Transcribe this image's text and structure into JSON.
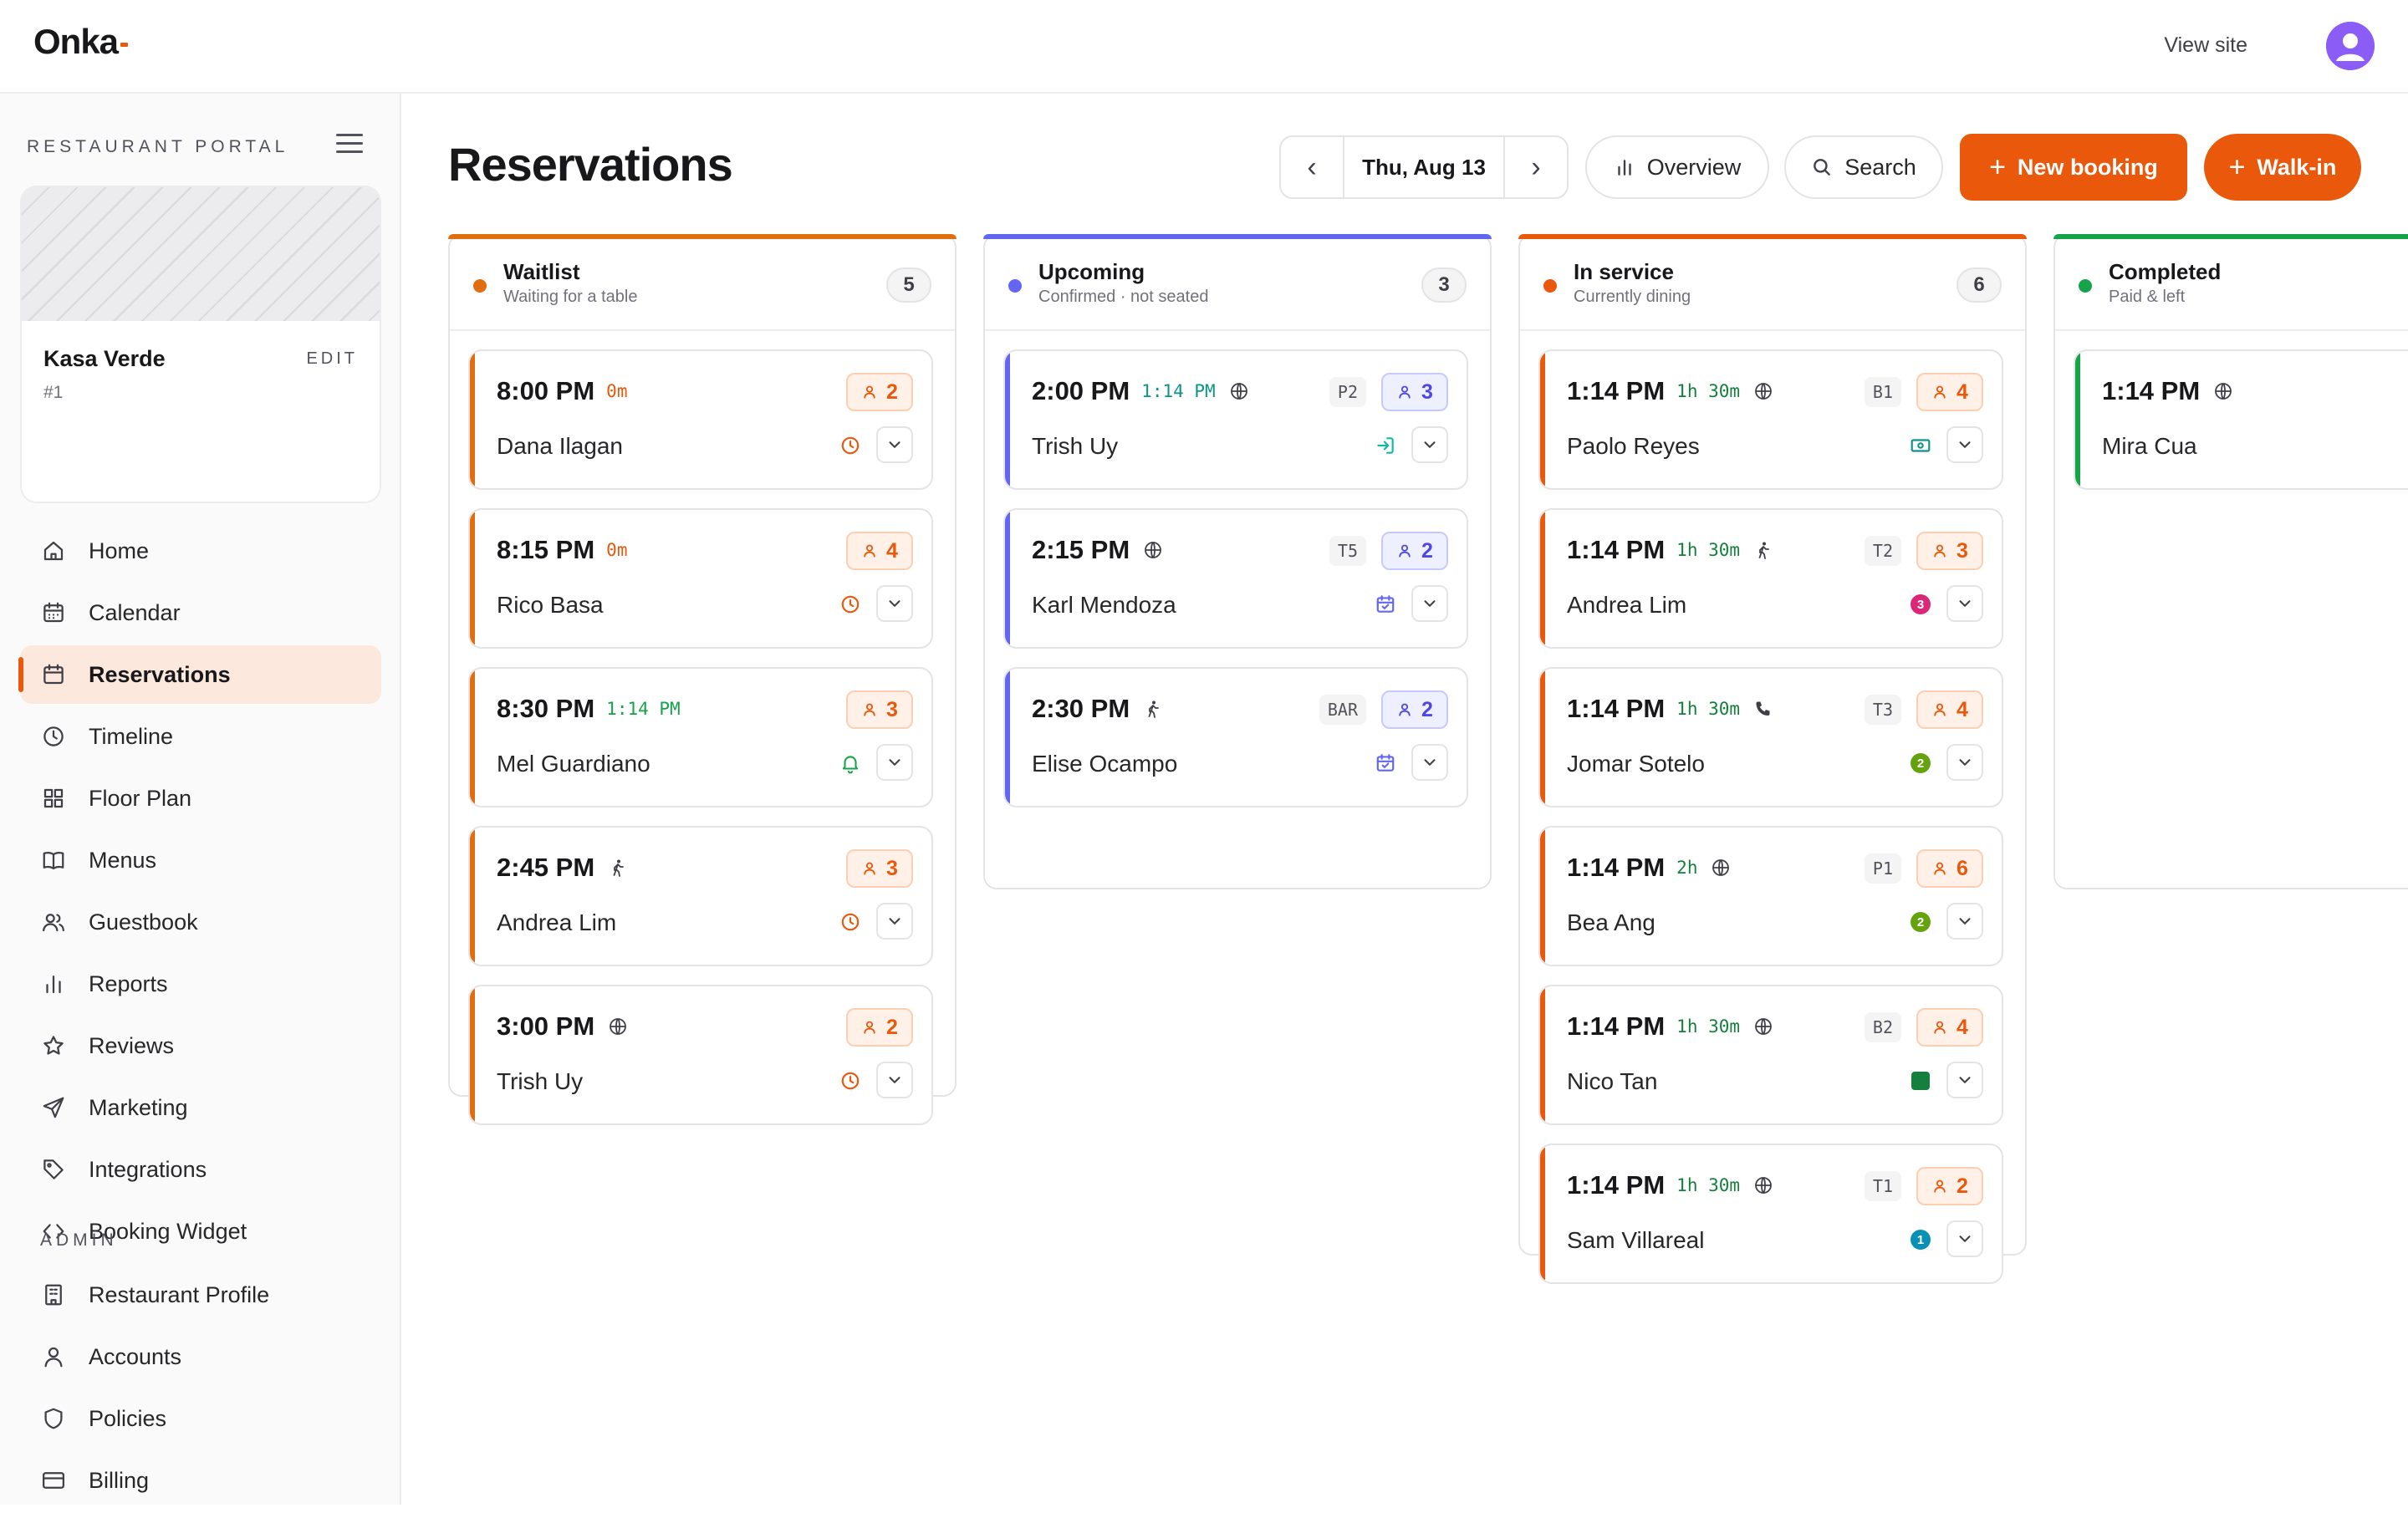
{
  "app": {
    "brand": "Onka",
    "view_site": "View site"
  },
  "sidebar": {
    "portal_label": "RESTAURANT PORTAL",
    "restaurant": {
      "name": "Kasa Verde",
      "id": "#1",
      "edit": "EDIT"
    },
    "items": [
      {
        "label": "Home",
        "icon": "home-icon"
      },
      {
        "label": "Calendar",
        "icon": "calendar-grid-icon"
      },
      {
        "label": "Reservations",
        "icon": "calendar-icon",
        "active": true
      },
      {
        "label": "Timeline",
        "icon": "clock-icon"
      },
      {
        "label": "Floor Plan",
        "icon": "grid-icon"
      },
      {
        "label": "Menus",
        "icon": "book-icon"
      },
      {
        "label": "Guestbook",
        "icon": "users-icon"
      },
      {
        "label": "Reports",
        "icon": "bar-chart-icon"
      },
      {
        "label": "Reviews",
        "icon": "star-icon"
      },
      {
        "label": "Marketing",
        "icon": "send-icon"
      },
      {
        "label": "Integrations",
        "icon": "tag-icon"
      },
      {
        "label": "Booking Widget",
        "icon": "code-icon"
      }
    ],
    "admin_label": "ADMIN",
    "admin_items": [
      {
        "label": "Restaurant Profile",
        "icon": "building-icon"
      },
      {
        "label": "Accounts",
        "icon": "user-icon"
      },
      {
        "label": "Policies",
        "icon": "shield-icon"
      },
      {
        "label": "Billing",
        "icon": "credit-card-icon"
      }
    ]
  },
  "header": {
    "title": "Reservations",
    "date": "Thu, Aug 13",
    "prev": "‹",
    "next": "›",
    "overview": "Overview",
    "search": "Search",
    "new_booking": "New booking",
    "walk_in": "Walk-in"
  },
  "colors": {
    "accent": "#ea580c",
    "waitlist": "#ea580c",
    "upcoming": "#6366f1",
    "in_service": "#ea580c",
    "completed": "#16a34a"
  },
  "columns": [
    {
      "name": "Waitlist",
      "sub": "Waiting for a table",
      "count": "5",
      "color": "#e06d10",
      "cards": [
        {
          "time": "8:00 PM",
          "meta": "0m",
          "meta_color": "#ea580c",
          "channel": "",
          "guest": "Dana Ilagan",
          "party": "2",
          "table": "",
          "status": "clock"
        },
        {
          "time": "8:15 PM",
          "meta": "0m",
          "meta_color": "#ea580c",
          "channel": "",
          "guest": "Rico Basa",
          "party": "4",
          "table": "",
          "status": "clock"
        },
        {
          "time": "8:30 PM",
          "meta": "1:14 PM",
          "meta_color": "#16a34a",
          "channel": "",
          "guest": "Mel Guardiano",
          "party": "3",
          "table": "",
          "status": "bell"
        },
        {
          "time": "2:45 PM",
          "meta": "",
          "meta_color": "",
          "channel": "walk",
          "guest": "Andrea Lim",
          "party": "3",
          "table": "",
          "status": "clock"
        },
        {
          "time": "3:00 PM",
          "meta": "",
          "meta_color": "",
          "channel": "globe",
          "guest": "Trish Uy",
          "party": "2",
          "table": "",
          "status": "clock"
        }
      ]
    },
    {
      "name": "Upcoming",
      "sub": "Confirmed · not seated",
      "count": "3",
      "color": "#6366f1",
      "cards": [
        {
          "time": "2:00 PM",
          "meta": "1:14 PM",
          "meta_color": "#0d9488",
          "channel": "globe",
          "guest": "Trish Uy",
          "party": "3",
          "table": "P2",
          "status": "login"
        },
        {
          "time": "2:15 PM",
          "meta": "",
          "meta_color": "",
          "channel": "globe",
          "guest": "Karl Mendoza",
          "party": "2",
          "table": "T5",
          "status": "cal-check"
        },
        {
          "time": "2:30 PM",
          "meta": "",
          "meta_color": "",
          "channel": "walk",
          "guest": "Elise Ocampo",
          "party": "2",
          "table": "BAR",
          "status": "cal-check"
        }
      ]
    },
    {
      "name": "In service",
      "sub": "Currently dining",
      "count": "6",
      "color": "#ea580c",
      "cards": [
        {
          "time": "1:14 PM",
          "meta": "1h 30m",
          "meta_color": "#15803d",
          "channel": "globe",
          "guest": "Paolo Reyes",
          "party": "4",
          "table": "B1",
          "status": "cash"
        },
        {
          "time": "1:14 PM",
          "meta": "1h 30m",
          "meta_color": "#15803d",
          "channel": "walk",
          "guest": "Andrea Lim",
          "party": "3",
          "table": "T2",
          "status": "num3"
        },
        {
          "time": "1:14 PM",
          "meta": "1h 30m",
          "meta_color": "#15803d",
          "channel": "phone",
          "guest": "Jomar Sotelo",
          "party": "4",
          "table": "T3",
          "status": "num2"
        },
        {
          "time": "1:14 PM",
          "meta": "2h",
          "meta_color": "#15803d",
          "channel": "globe",
          "guest": "Bea Ang",
          "party": "6",
          "table": "P1",
          "status": "num2"
        },
        {
          "time": "1:14 PM",
          "meta": "1h 30m",
          "meta_color": "#15803d",
          "channel": "globe",
          "guest": "Nico Tan",
          "party": "4",
          "table": "B2",
          "status": "square"
        },
        {
          "time": "1:14 PM",
          "meta": "1h 30m",
          "meta_color": "#15803d",
          "channel": "globe",
          "guest": "Sam Villareal",
          "party": "2",
          "table": "T1",
          "status": "num1"
        }
      ]
    },
    {
      "name": "Completed",
      "sub": "Paid & left",
      "count": "",
      "color": "#16a34a",
      "cards": [
        {
          "time": "1:14 PM",
          "meta": "",
          "meta_color": "",
          "channel": "globe",
          "guest": "Mira Cua",
          "party": "",
          "table": "",
          "status": ""
        }
      ]
    }
  ]
}
